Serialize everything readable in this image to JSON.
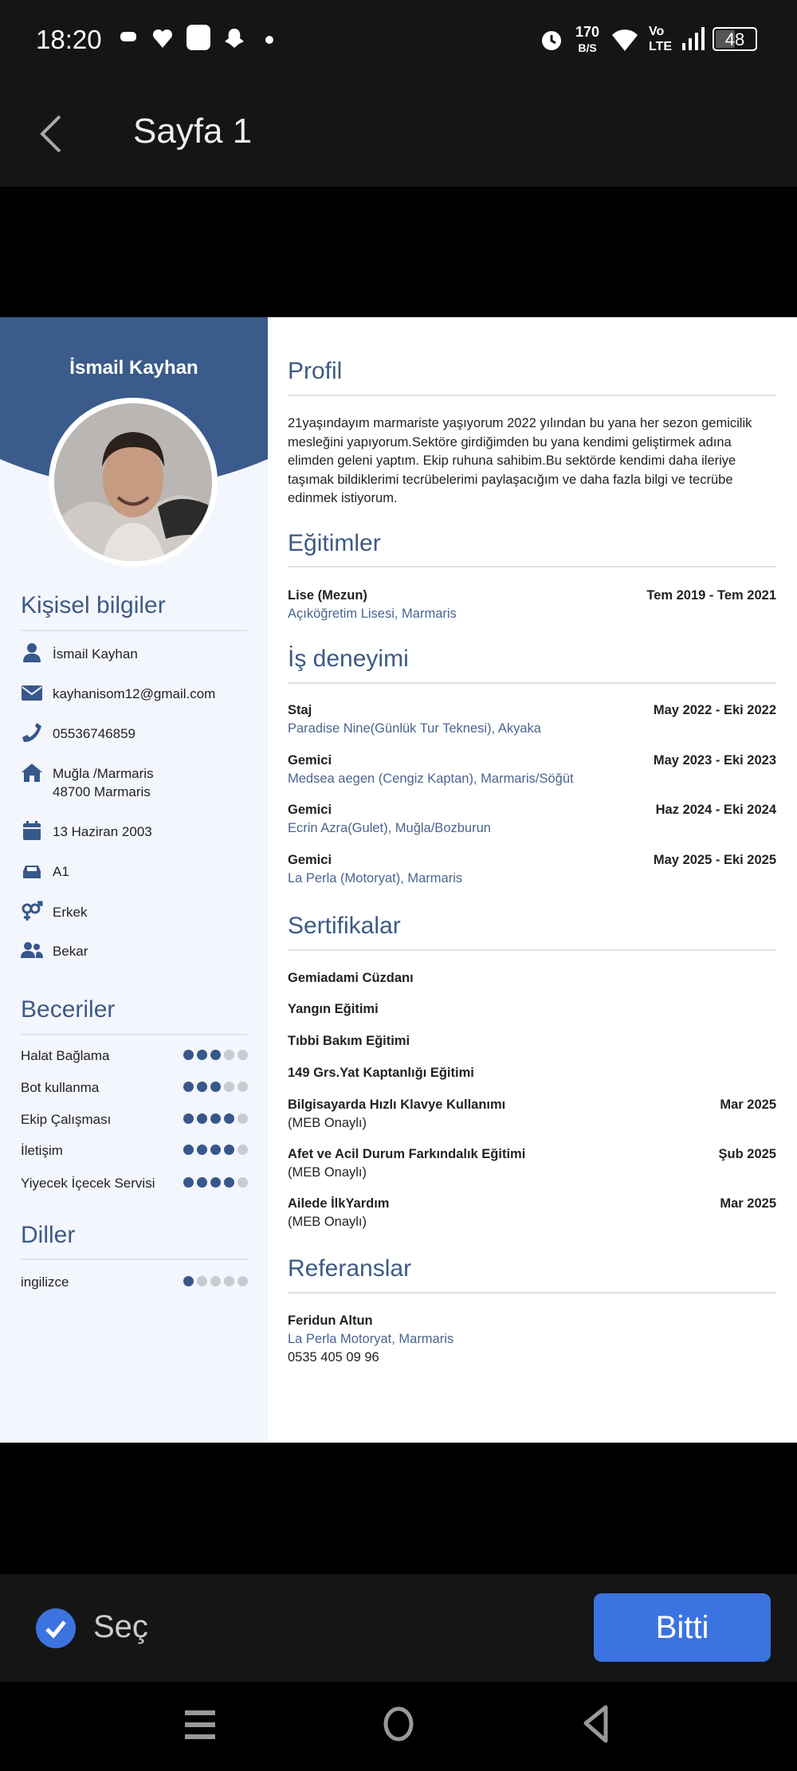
{
  "status_bar": {
    "time": "18:20",
    "net_speed": "170",
    "net_unit": "B/S",
    "volte": "Vo",
    "lte": "LTE",
    "battery": "48"
  },
  "header": {
    "title": "Sayfa 1"
  },
  "cv": {
    "name": "İsmail Kayhan",
    "personal": {
      "heading": "Kişisel bilgiler",
      "items": [
        {
          "icon": "user-icon",
          "text": "İsmail Kayhan"
        },
        {
          "icon": "envelope-icon",
          "text": "kayhanisom12@gmail.com"
        },
        {
          "icon": "phone-icon",
          "text": "05536746859"
        },
        {
          "icon": "home-icon",
          "text": "Muğla /Marmaris",
          "text2": "48700 Marmaris"
        },
        {
          "icon": "calendar-icon",
          "text": "13 Haziran 2003"
        },
        {
          "icon": "car-icon",
          "text": "A1"
        },
        {
          "icon": "gender-icon",
          "text": "Erkek"
        },
        {
          "icon": "users-icon",
          "text": "Bekar"
        }
      ]
    },
    "skills": {
      "heading": "Beceriler",
      "items": [
        {
          "name": "Halat Bağlama",
          "level": 3
        },
        {
          "name": "Bot kullanma",
          "level": 3
        },
        {
          "name": "Ekip Çalışması",
          "level": 4
        },
        {
          "name": "İletişim",
          "level": 4
        },
        {
          "name": "Yiyecek İçecek Servisi",
          "level": 4
        }
      ]
    },
    "languages": {
      "heading": "Diller",
      "items": [
        {
          "name": "ingilizce",
          "level": 1
        }
      ]
    },
    "profile": {
      "heading": "Profil",
      "text": "21yaşındayım marmariste yaşıyorum  2022 yılından bu yana her sezon gemicilik mesleğini yapıyorum.Sektöre girdiğimden bu yana kendimi geliştirmek adına elimden geleni yaptım. Ekip ruhuna sahibim.Bu sektörde  kendimi daha ileriye taşımak bildiklerimi tecrübelerimi paylaşacığım ve daha fazla bilgi  ve tecrübe edinmek istiyorum."
    },
    "education": {
      "heading": "Eğitimler",
      "items": [
        {
          "title": "Lise (Mezun)",
          "place": "Açıköğretim Lisesi, Marmaris",
          "date": "Tem 2019 - Tem 2021"
        }
      ]
    },
    "experience": {
      "heading": "İş deneyimi",
      "items": [
        {
          "title": "Staj",
          "place": "Paradise Nine(Günlük Tur Teknesi), Akyaka",
          "date": "May 2022 - Eki 2022"
        },
        {
          "title": "Gemici",
          "place": "Medsea aegen (Cengiz Kaptan), Marmaris/Söğüt",
          "date": "May 2023 - Eki 2023"
        },
        {
          "title": "Gemici",
          "place": "Ecrin Azra(Gulet), Muğla/Bozburun",
          "date": "Haz 2024 - Eki 2024"
        },
        {
          "title": "Gemici",
          "place": "La Perla (Motoryat), Marmaris",
          "date": "May 2025 - Eki 2025"
        }
      ]
    },
    "certificates": {
      "heading": "Sertifikalar",
      "items": [
        {
          "title": "Gemiadami Cüzdanı"
        },
        {
          "title": "Yangın Eğitimi"
        },
        {
          "title": "Tıbbi Bakım Eğitimi"
        },
        {
          "title": "149 Grs.Yat Kaptanlığı Eğitimi"
        },
        {
          "title": "Bilgisayarda Hızlı Klavye Kullanımı",
          "note": "(MEB Onaylı)",
          "date": "Mar 2025"
        },
        {
          "title": "Afet ve Acil Durum Farkındalık Eğitimi",
          "note": "(MEB Onaylı)",
          "date": "Şub 2025"
        },
        {
          "title": "Ailede İlkYardım",
          "note": "(MEB Onaylı)",
          "date": "Mar 2025"
        }
      ]
    },
    "references": {
      "heading": "Referanslar",
      "name": "Feridun Altun",
      "company": "La Perla Motoryat, Marmaris",
      "phone": "0535 405 09 96"
    }
  },
  "bottom": {
    "select_label": "Seç",
    "done_label": "Bitti"
  },
  "colors": {
    "accent": "#3d5a85",
    "button": "#3b73e0",
    "dot_off": "#c8cbd1"
  }
}
